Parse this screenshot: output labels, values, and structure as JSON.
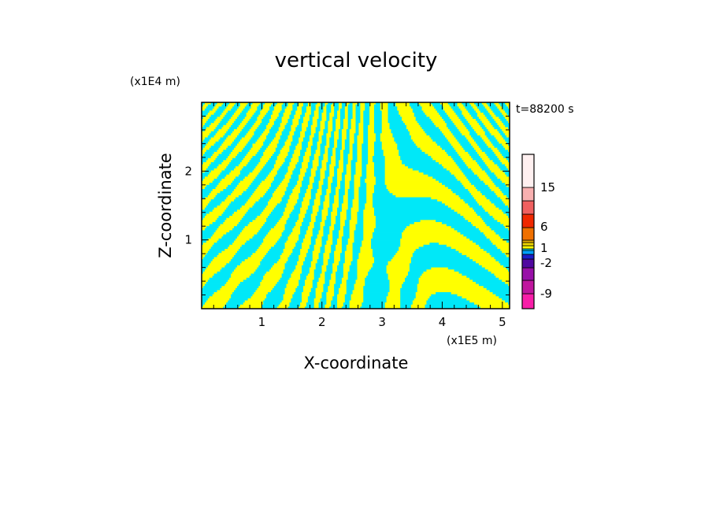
{
  "chart_data": {
    "type": "heatmap",
    "title": "vertical velocity",
    "xlabel": "X-coordinate",
    "ylabel": "Z-coordinate",
    "x_unit": "(x1E5 m)",
    "y_unit": "(x1E4 m)",
    "time_label": "t=88200 s",
    "xlim": [
      0,
      5.12
    ],
    "ylim": [
      0,
      3.0
    ],
    "x_ticks": [
      "1",
      "2",
      "3",
      "4",
      "5"
    ],
    "y_ticks": [
      "1",
      "2"
    ],
    "colorbar": {
      "tick_labels": [
        "15",
        "6",
        "1",
        "-2",
        "-9"
      ],
      "colors": [
        "#f81ea8",
        "#c0169e",
        "#9810a8",
        "#5008a0",
        "#1c1cc8",
        "#00a0ff",
        "#00e8f8",
        "#f8f800",
        "#f0d800",
        "#e8b000",
        "#f07000",
        "#f02800",
        "#f06060",
        "#f8b0b0",
        "#fff0f0"
      ]
    },
    "field_colors": {
      "positive": "#ffff00",
      "negative": "#00e8f8"
    },
    "grid": false
  }
}
